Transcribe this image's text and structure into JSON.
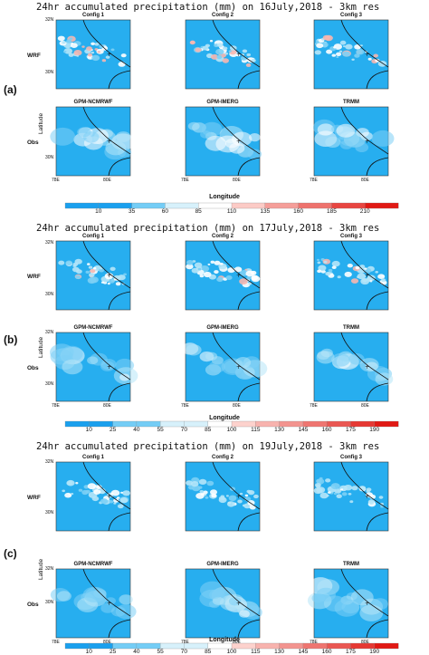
{
  "colors": {
    "background": "#27aeef",
    "border": "#e53a27",
    "ocean_blue": "#2aa7f0"
  },
  "chart_data": [
    {
      "type": "heatmap",
      "title": "24hr accumulated precipitation (mm) on 16July,2018 - 3km res",
      "panel_label": "(a)",
      "row_labels": [
        "WRF",
        "Obs"
      ],
      "ylabel": "Latitude",
      "xlabel": "Longitude",
      "panel_titles": [
        "Config 1",
        "Config 2",
        "Config 3",
        "GPM-NCMRWF",
        "GPM-IMERG",
        "TRMM"
      ],
      "lat_ticks": [
        "32N",
        "30N",
        "30N"
      ],
      "lon_ticks": [
        "78E",
        "80E",
        "78E",
        "80E",
        "78E",
        "80E"
      ],
      "colorbar_ticks": [
        "10",
        "35",
        "60",
        "85",
        "110",
        "135",
        "160",
        "185",
        "210"
      ]
    },
    {
      "type": "heatmap",
      "title": "24hr accumulated precipitation (mm) on 17July,2018 - 3km res",
      "panel_label": "(b)",
      "row_labels": [
        "WRF",
        "Obs"
      ],
      "ylabel": "Latitude",
      "xlabel": "Longitude",
      "panel_titles": [
        "Config 1",
        "Config 2",
        "Config 3",
        "GPM-NCMRWF",
        "GPM-IMERG",
        "TRMM"
      ],
      "lat_ticks": [
        "32N",
        "30N",
        "32N",
        "30N"
      ],
      "lon_ticks": [
        "78E",
        "80E",
        "78E",
        "80E",
        "78E",
        "80E"
      ],
      "colorbar_ticks": [
        "10",
        "25",
        "40",
        "55",
        "70",
        "85",
        "100",
        "115",
        "130",
        "145",
        "160",
        "175",
        "190"
      ]
    },
    {
      "type": "heatmap",
      "title": "24hr accumulated precipitation (mm) on 19July,2018 - 3km res",
      "panel_label": "(c)",
      "row_labels": [
        "WRF",
        "Obs"
      ],
      "ylabel": "Latitude",
      "xlabel": "Longitude",
      "panel_titles": [
        "Config 1",
        "Config 2",
        "Config 3",
        "GPM-NCMRWF",
        "GPM-IMERG",
        "TRMM"
      ],
      "lat_ticks": [
        "32N",
        "30N",
        "32N",
        "30N"
      ],
      "lon_ticks": [
        "78E",
        "80E",
        "78E",
        "80E",
        "78E",
        "80E"
      ],
      "colorbar_ticks": [
        "10",
        "25",
        "40",
        "55",
        "70",
        "85",
        "100",
        "115",
        "130",
        "145",
        "160",
        "175",
        "190"
      ]
    }
  ]
}
